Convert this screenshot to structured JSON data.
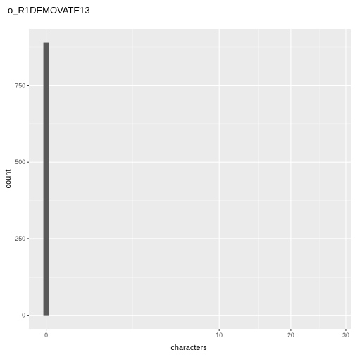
{
  "chart_data": {
    "type": "bar",
    "title": "o_R1DEMOVATE13",
    "xlabel": "characters",
    "ylabel": "count",
    "x_scale": "sqrt",
    "x_ticks": [
      0,
      10,
      20,
      30
    ],
    "x_tick_labels": [
      "0",
      "10",
      "20",
      "30"
    ],
    "x_minor_ticks": [
      2.5,
      15,
      25
    ],
    "xlim": [
      -0.1,
      31
    ],
    "y_ticks": [
      0,
      250,
      500,
      750
    ],
    "y_tick_labels": [
      "0",
      "250",
      "500",
      "750"
    ],
    "ylim": [
      -44.5,
      935
    ],
    "bins": [
      {
        "x": 0,
        "count": 890
      }
    ],
    "grid": true,
    "legend": "none",
    "colors": {
      "panel": "#ebebeb",
      "grid_major": "#ffffff",
      "bar": "#595959",
      "tick": "#333333",
      "tick_label": "#4d4d4d"
    }
  }
}
